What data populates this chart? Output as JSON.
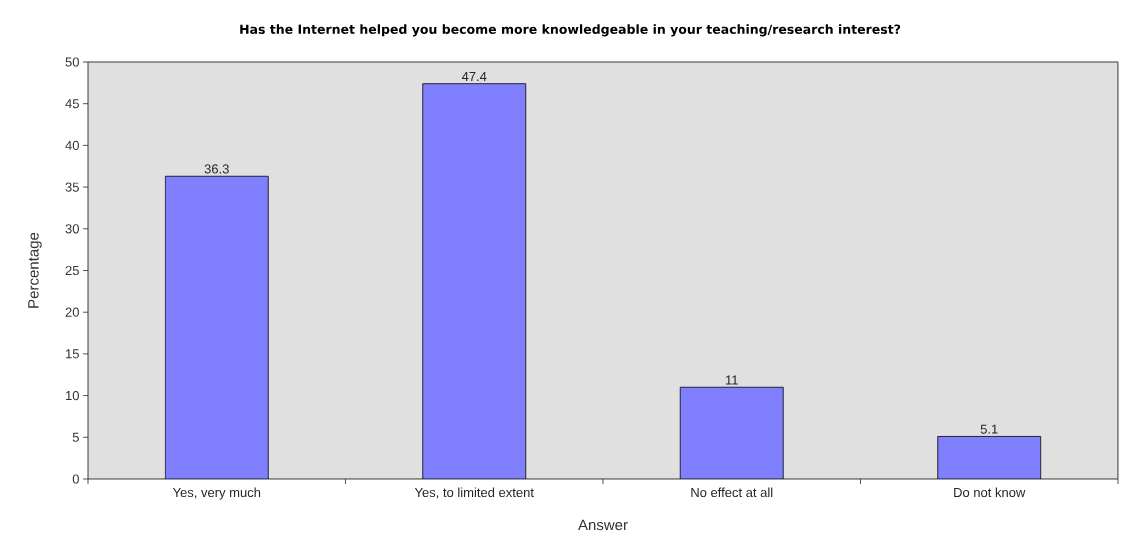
{
  "chart_data": {
    "type": "bar",
    "title": "Has the Internet helped you become more knowledgeable in your teaching/research interest?",
    "xlabel": "Answer",
    "ylabel": "Percentage",
    "categories": [
      "Yes, very much",
      "Yes, to limited extent",
      "No effect at all",
      "Do not know"
    ],
    "values": [
      36.3,
      47.4,
      11,
      5.1
    ],
    "color": "#8080ff",
    "ylim": [
      0,
      50
    ],
    "yticks": [
      0,
      5,
      10,
      15,
      20,
      25,
      30,
      35,
      40,
      45,
      50
    ],
    "data_labels": true
  }
}
